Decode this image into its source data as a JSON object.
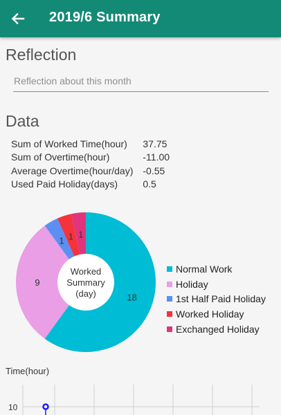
{
  "appbar": {
    "title": "2019/6 Summary",
    "back_icon": "arrow-back-icon",
    "color": "#138a76"
  },
  "reflection": {
    "title": "Reflection",
    "placeholder": "Reflection about this month",
    "value": ""
  },
  "data_section": {
    "title": "Data",
    "rows": [
      {
        "label": "Sum of Worked Time(hour)",
        "value": "37.75"
      },
      {
        "label": "Sum of Overtime(hour)",
        "value": "-11.00"
      },
      {
        "label": "Average Overtime(hour/day)",
        "value": "-0.55"
      },
      {
        "label": "Used Paid Holiday(days)",
        "value": "0.5"
      }
    ]
  },
  "chart_data": [
    {
      "type": "pie",
      "center_text": [
        "Worked",
        "Summary",
        "(day)"
      ],
      "categories": [
        "Normal Work",
        "Holiday",
        "1st Half Paid Holiday",
        "Worked Holiday",
        "Exchanged Holiday"
      ],
      "values": [
        18,
        9,
        1,
        1,
        1
      ],
      "colors": [
        "#00bcd4",
        "#e99ee6",
        "#5c8ff2",
        "#f4333c",
        "#e0357d"
      ],
      "legend_position": "right"
    },
    {
      "type": "line",
      "ylabel": "Time(hour)",
      "y_tick_labels": [
        "10"
      ],
      "series": [
        {
          "values": [
            10
          ]
        }
      ],
      "point_color": "#1a1aff"
    }
  ]
}
